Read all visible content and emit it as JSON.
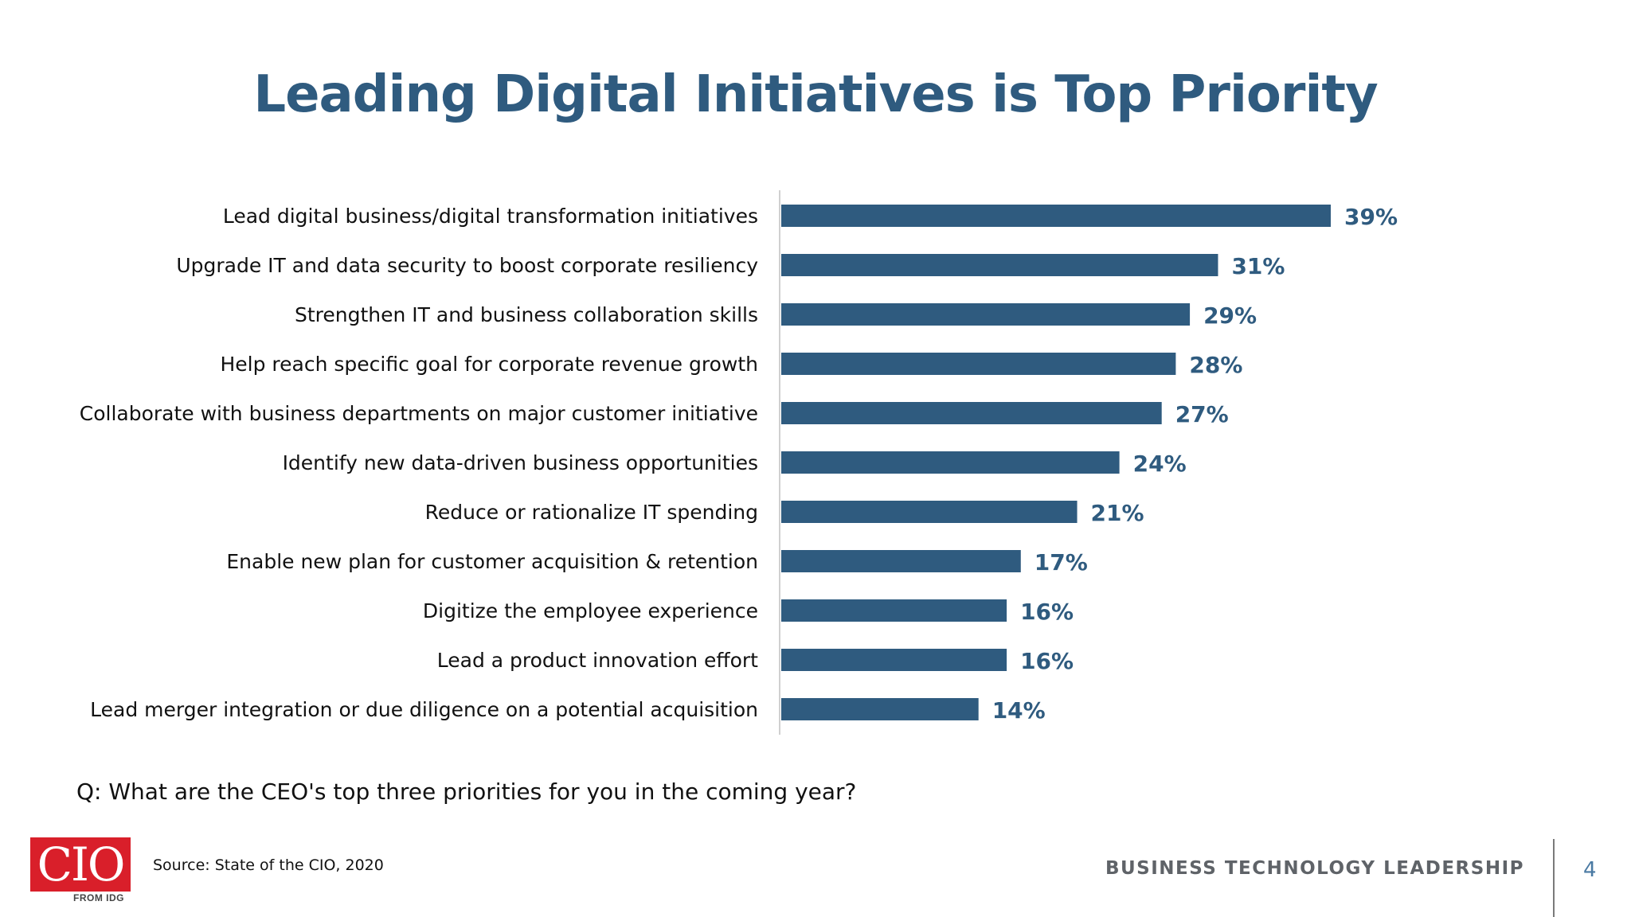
{
  "slide": {
    "title": "Leading Digital Initiatives is Top Priority",
    "question": "Q: What are the CEO's top three priorities for you in the coming year?",
    "source": "Source: State of the CIO, 2020",
    "tagline": "BUSINESS TECHNOLOGY LEADERSHIP",
    "page_number": "4"
  },
  "logo": {
    "text": "CIO",
    "subtext": "FROM IDG",
    "color": "#d91f2a"
  },
  "colors": {
    "bar": "#2f5b7f",
    "value_label": "#2f5b7f",
    "title": "#2f5b7f"
  },
  "chart_data": {
    "type": "bar",
    "orientation": "horizontal",
    "title": "Leading Digital Initiatives is Top Priority",
    "categories": [
      "Lead digital business/digital transformation initiatives",
      "Upgrade IT and data security to boost corporate resiliency",
      "Strengthen IT and business collaboration skills",
      "Help reach specific goal for corporate revenue growth",
      "Collaborate with business departments on major customer initiative",
      "Identify new data-driven business opportunities",
      "Reduce or rationalize IT spending",
      "Enable new plan for customer acquisition & retention",
      "Digitize the employee experience",
      "Lead a product innovation effort",
      "Lead merger integration or due diligence on a potential acquisition"
    ],
    "values": [
      39,
      31,
      29,
      28,
      27,
      24,
      21,
      17,
      16,
      16,
      14
    ],
    "value_suffix": "%",
    "xlabel": "",
    "ylabel": "",
    "xlim": [
      0,
      39
    ],
    "grid": false,
    "legend": "none"
  }
}
